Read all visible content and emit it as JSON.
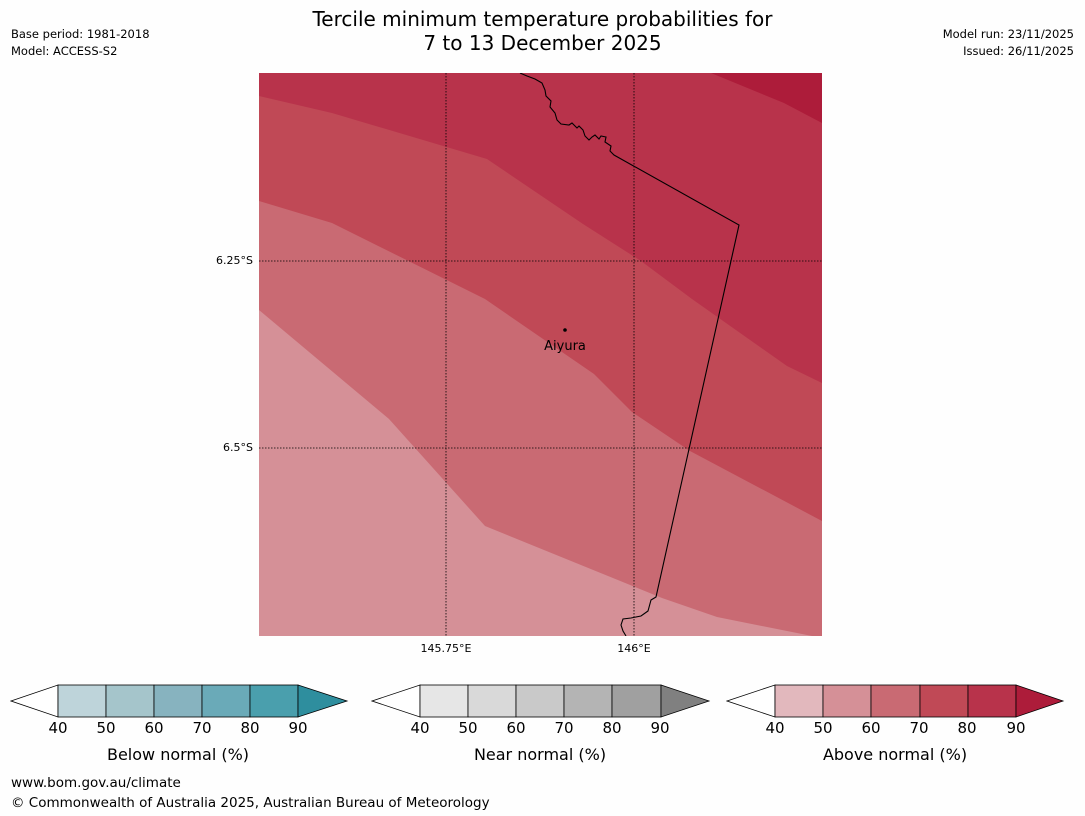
{
  "title": {
    "line1": "Tercile minimum temperature probabilities for",
    "line2": "7 to 13 December 2025"
  },
  "meta_left": {
    "base_period": "Base period: 1981-2018",
    "model": "Model: ACCESS-S2"
  },
  "meta_right": {
    "model_run": "Model run: 23/11/2025",
    "issued": "Issued: 26/11/2025"
  },
  "map": {
    "place_label": "Aiyura",
    "lat_labels": [
      "6.25°S",
      "6.5°S"
    ],
    "lon_labels": [
      "145.75°E",
      "146°E"
    ],
    "fill_colors": {
      "p50_60": "#d59097",
      "p60_70": "#c96a73",
      "p70_80": "#c04956",
      "p80_90": "#b8334b",
      "p90_plus": "#ad1c3a"
    }
  },
  "colorbars": [
    {
      "name": "below",
      "label": "Below normal (%)",
      "ticks": [
        "40",
        "50",
        "60",
        "70",
        "80",
        "90"
      ],
      "colors": [
        "#ffffff",
        "#bed4da",
        "#a5c5cb",
        "#87b3bf",
        "#6aaab8",
        "#4a9fad",
        "#2e8e9e"
      ]
    },
    {
      "name": "near",
      "label": "Near normal (%)",
      "ticks": [
        "40",
        "50",
        "60",
        "70",
        "80",
        "90"
      ],
      "colors": [
        "#ffffff",
        "#e6e6e6",
        "#d9d9d9",
        "#c9c9c9",
        "#b4b4b4",
        "#a0a0a0",
        "#808080"
      ]
    },
    {
      "name": "above",
      "label": "Above normal (%)",
      "ticks": [
        "40",
        "50",
        "60",
        "70",
        "80",
        "90"
      ],
      "colors": [
        "#ffffff",
        "#e2b8bd",
        "#d59097",
        "#c96a73",
        "#c04956",
        "#b8334b",
        "#ad1c3a"
      ]
    }
  ],
  "footer": {
    "url": "www.bom.gov.au/climate",
    "copyright": "© Commonwealth of Australia 2025, Australian Bureau of Meteorology"
  }
}
